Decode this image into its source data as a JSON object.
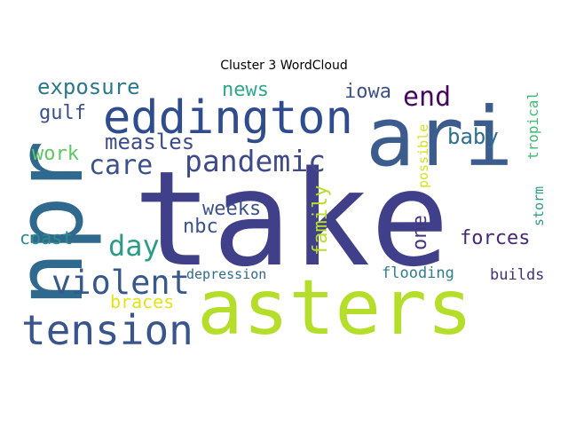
{
  "chart_data": {
    "type": "wordcloud",
    "title": "Cluster 3 WordCloud",
    "words": [
      {
        "text": "take",
        "color": "#3f3f8a"
      },
      {
        "text": "asters",
        "color": "#b5de2b"
      },
      {
        "text": "npr",
        "color": "#30698e"
      },
      {
        "text": "ari",
        "color": "#3b5c8d"
      },
      {
        "text": "eddington",
        "color": "#2f4d8e"
      },
      {
        "text": "tension",
        "color": "#3a548c"
      },
      {
        "text": "pandemic",
        "color": "#3e4a89"
      },
      {
        "text": "violent",
        "color": "#37588c"
      },
      {
        "text": "care",
        "color": "#3a528b"
      },
      {
        "text": "day",
        "color": "#2b9c86"
      },
      {
        "text": "measles",
        "color": "#3e4c8a"
      },
      {
        "text": "end",
        "color": "#46085c"
      },
      {
        "text": "exposure",
        "color": "#29798e"
      },
      {
        "text": "news",
        "color": "#2ea889"
      },
      {
        "text": "iowa",
        "color": "#3c4f8a"
      },
      {
        "text": "baby",
        "color": "#2d6f8e"
      },
      {
        "text": "gulf",
        "color": "#3c4f8a"
      },
      {
        "text": "work",
        "color": "#5cc863"
      },
      {
        "text": "weeks",
        "color": "#3b528b"
      },
      {
        "text": "nbc",
        "color": "#3b528b"
      },
      {
        "text": "coast",
        "color": "#2c8d8c"
      },
      {
        "text": "family",
        "color": "#b8de29"
      },
      {
        "text": "one",
        "color": "#453781"
      },
      {
        "text": "forces",
        "color": "#482878"
      },
      {
        "text": "braces",
        "color": "#e2e418"
      },
      {
        "text": "depression",
        "color": "#31698e"
      },
      {
        "text": "flooding",
        "color": "#2e7e8e"
      },
      {
        "text": "builds",
        "color": "#462f7c"
      },
      {
        "text": "tropical",
        "color": "#3dbc74"
      },
      {
        "text": "possible",
        "color": "#d2e21b"
      },
      {
        "text": "storm",
        "color": "#2b9c87"
      }
    ]
  }
}
